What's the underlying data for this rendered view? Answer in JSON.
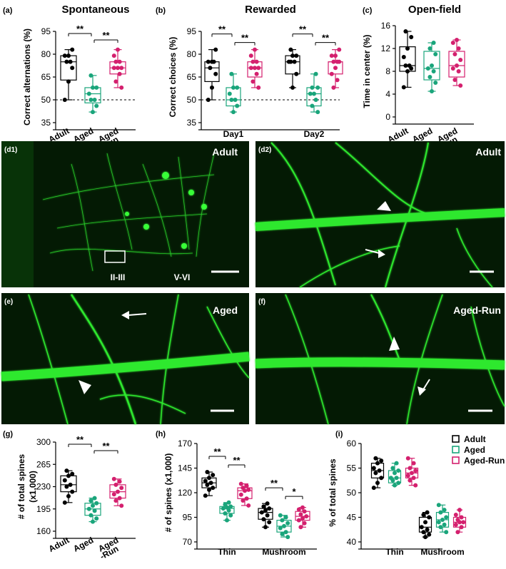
{
  "colors": {
    "adult": "#000000",
    "aged": "#1aa57b",
    "aged_run": "#d4206e",
    "fluor": "#2ee82e",
    "bg": "#041a04"
  },
  "chart_data": [
    {
      "panel_label": "(a)",
      "type": "box",
      "title": "Spontaneous",
      "ylabel": "Correct alternations (%)",
      "categories": [
        "Adult",
        "Aged",
        "Aged\n-Run"
      ],
      "category_lines": [
        [
          "Adult"
        ],
        [
          "Aged"
        ],
        [
          "Aged",
          "-Run"
        ]
      ],
      "ylim": [
        35,
        95
      ],
      "yticks": [
        35,
        50,
        65,
        80,
        95
      ],
      "ref_line": 50,
      "series": [
        {
          "group": "Adult",
          "q1": 63,
          "median": 75,
          "q3": 79,
          "min": 50,
          "max": 83,
          "points": [
            50,
            62,
            71,
            75,
            75,
            79,
            79,
            83
          ]
        },
        {
          "group": "Aged",
          "q1": 48,
          "median": 54,
          "q3": 58,
          "min": 42,
          "max": 66,
          "points": [
            42,
            46,
            50,
            50,
            54,
            58,
            58,
            66
          ]
        },
        {
          "group": "Aged-Run",
          "q1": 67,
          "median": 71,
          "q3": 75,
          "min": 58,
          "max": 83,
          "points": [
            58,
            62,
            67,
            71,
            71,
            71,
            75,
            75,
            79,
            83
          ]
        }
      ],
      "significance": [
        {
          "groups": [
            "Adult",
            "Aged"
          ],
          "label": "**"
        },
        {
          "groups": [
            "Aged",
            "Aged-Run"
          ],
          "label": "**"
        }
      ]
    },
    {
      "panel_label": "(b)",
      "type": "box",
      "title": "Rewarded",
      "ylabel": "Correct choices (%)",
      "categories": [
        "Day1",
        "Day2"
      ],
      "ylim": [
        35,
        95
      ],
      "yticks": [
        35,
        50,
        65,
        80,
        95
      ],
      "ref_line": 50,
      "series": [
        {
          "day": "Day1",
          "group": "Adult",
          "q1": 62,
          "median": 71,
          "q3": 75,
          "min": 50,
          "max": 83,
          "points": [
            50,
            58,
            67,
            71,
            75,
            75,
            75,
            83
          ]
        },
        {
          "day": "Day1",
          "group": "Aged",
          "q1": 46,
          "median": 50,
          "q3": 58,
          "min": 42,
          "max": 67,
          "points": [
            42,
            46,
            50,
            50,
            54,
            58,
            58,
            67
          ]
        },
        {
          "day": "Day1",
          "group": "Aged-Run",
          "q1": 65,
          "median": 71,
          "q3": 75,
          "min": 58,
          "max": 83,
          "points": [
            58,
            62,
            67,
            71,
            71,
            71,
            75,
            75,
            79,
            83
          ]
        },
        {
          "day": "Day2",
          "group": "Adult",
          "q1": 67,
          "median": 75,
          "q3": 79,
          "min": 58,
          "max": 83,
          "points": [
            58,
            67,
            75,
            75,
            75,
            79,
            79,
            83
          ]
        },
        {
          "day": "Day2",
          "group": "Aged",
          "q1": 46,
          "median": 54,
          "q3": 58,
          "min": 42,
          "max": 67,
          "points": [
            42,
            46,
            50,
            54,
            54,
            58,
            58,
            67
          ]
        },
        {
          "day": "Day2",
          "group": "Aged-Run",
          "q1": 67,
          "median": 75,
          "q3": 75,
          "min": 58,
          "max": 83,
          "points": [
            58,
            63,
            67,
            71,
            75,
            75,
            75,
            79,
            79,
            83
          ]
        }
      ],
      "significance": [
        {
          "day": "Day1",
          "groups": [
            "Adult",
            "Aged"
          ],
          "label": "**"
        },
        {
          "day": "Day1",
          "groups": [
            "Aged",
            "Aged-Run"
          ],
          "label": "**"
        },
        {
          "day": "Day2",
          "groups": [
            "Adult",
            "Aged"
          ],
          "label": "**"
        },
        {
          "day": "Day2",
          "groups": [
            "Aged",
            "Aged-Run"
          ],
          "label": "**"
        }
      ]
    },
    {
      "panel_label": "(c)",
      "type": "box",
      "title": "Open-field",
      "ylabel": "Time in center (%)",
      "categories": [
        "Adult",
        "Aged",
        "Aged\n-Run"
      ],
      "category_lines": [
        [
          "Adult"
        ],
        [
          "Aged"
        ],
        [
          "Aged",
          "-Run"
        ]
      ],
      "ylim": [
        0,
        16
      ],
      "yticks": [
        0,
        4,
        8,
        12,
        16
      ],
      "series": [
        {
          "group": "Adult",
          "q1": 8,
          "median": 9,
          "q3": 12.3,
          "min": 5.2,
          "max": 15,
          "points": [
            5.2,
            8,
            8.5,
            9,
            9,
            10.5,
            12,
            14,
            15
          ]
        },
        {
          "group": "Aged",
          "q1": 6.5,
          "median": 8.5,
          "q3": 11.5,
          "min": 4.5,
          "max": 13,
          "points": [
            4.5,
            6,
            7,
            8,
            8.5,
            9,
            11,
            12,
            13
          ]
        },
        {
          "group": "Aged-Run",
          "q1": 7,
          "median": 9,
          "q3": 11.5,
          "min": 5.5,
          "max": 13.5,
          "points": [
            5.5,
            6.5,
            8,
            8.5,
            9,
            10,
            11,
            12,
            13,
            13.5
          ]
        }
      ]
    },
    {
      "panel_label": "(g)",
      "type": "box",
      "ylabel": "# of total spines\n(x1,000)",
      "ylabel_lines": [
        "# of total spines",
        "(x1,000)"
      ],
      "categories": [
        "Adult",
        "Aged",
        "Aged\n-Run"
      ],
      "category_lines": [
        [
          "Adult"
        ],
        [
          "Aged"
        ],
        [
          "Aged",
          "-Run"
        ]
      ],
      "ylim": [
        160,
        300
      ],
      "yticks": [
        160,
        195,
        230,
        265,
        300
      ],
      "series": [
        {
          "group": "Adult",
          "q1": 222,
          "median": 233,
          "q3": 247,
          "min": 205,
          "max": 255,
          "points": [
            205,
            215,
            222,
            230,
            233,
            240,
            247,
            250,
            255
          ]
        },
        {
          "group": "Aged",
          "q1": 185,
          "median": 195,
          "q3": 204,
          "min": 175,
          "max": 212,
          "points": [
            175,
            180,
            185,
            192,
            195,
            200,
            204,
            208,
            212
          ]
        },
        {
          "group": "Aged-Run",
          "q1": 212,
          "median": 222,
          "q3": 233,
          "min": 200,
          "max": 242,
          "points": [
            200,
            208,
            212,
            218,
            222,
            228,
            233,
            238,
            242
          ]
        }
      ],
      "significance": [
        {
          "groups": [
            "Adult",
            "Aged"
          ],
          "label": "**"
        },
        {
          "groups": [
            "Aged",
            "Aged-Run"
          ],
          "label": "**"
        }
      ]
    },
    {
      "panel_label": "(h)",
      "type": "box",
      "ylabel": "# of spines (x1,000)",
      "categories": [
        "Thin",
        "Mushroom"
      ],
      "ylim": [
        70,
        170
      ],
      "yticks": [
        70,
        95,
        120,
        145,
        170
      ],
      "series": [
        {
          "class": "Thin",
          "group": "Adult",
          "q1": 125,
          "median": 130,
          "q3": 135,
          "min": 117,
          "max": 141,
          "points": [
            117,
            123,
            125,
            128,
            130,
            132,
            135,
            138,
            141
          ]
        },
        {
          "class": "Thin",
          "group": "Aged",
          "q1": 99,
          "median": 104,
          "q3": 106,
          "min": 92,
          "max": 110,
          "points": [
            92,
            97,
            99,
            102,
            104,
            105,
            106,
            108,
            110
          ]
        },
        {
          "class": "Thin",
          "group": "Aged-Run",
          "q1": 114,
          "median": 122,
          "q3": 125,
          "min": 107,
          "max": 129,
          "points": [
            107,
            112,
            114,
            118,
            122,
            123,
            125,
            127,
            129
          ]
        },
        {
          "class": "Mushroom",
          "group": "Adult",
          "q1": 93,
          "median": 100,
          "q3": 104,
          "min": 85,
          "max": 109,
          "points": [
            85,
            90,
            93,
            97,
            100,
            102,
            104,
            106,
            109
          ]
        },
        {
          "class": "Mushroom",
          "group": "Aged",
          "q1": 80,
          "median": 86,
          "q3": 92,
          "min": 75,
          "max": 97,
          "points": [
            75,
            78,
            80,
            84,
            86,
            89,
            92,
            95,
            97
          ]
        },
        {
          "class": "Mushroom",
          "group": "Aged-Run",
          "q1": 92,
          "median": 96,
          "q3": 101,
          "min": 85,
          "max": 105,
          "points": [
            85,
            89,
            92,
            94,
            96,
            98,
            101,
            103,
            105
          ]
        }
      ],
      "significance": [
        {
          "class": "Thin",
          "groups": [
            "Adult",
            "Aged"
          ],
          "label": "**"
        },
        {
          "class": "Thin",
          "groups": [
            "Aged",
            "Aged-Run"
          ],
          "label": "**"
        },
        {
          "class": "Mushroom",
          "groups": [
            "Adult",
            "Aged"
          ],
          "label": "**"
        },
        {
          "class": "Mushroom",
          "groups": [
            "Aged",
            "Aged-Run"
          ],
          "label": "*"
        }
      ]
    },
    {
      "panel_label": "(i)",
      "type": "box",
      "ylabel": "% of total spines",
      "categories": [
        "Thin",
        "Mushroom"
      ],
      "ylim": [
        40,
        60
      ],
      "yticks": [
        40,
        45,
        50,
        55,
        60
      ],
      "legend": {
        "entries": [
          "Adult",
          "Aged",
          "Aged-Run"
        ],
        "position": "top-right"
      },
      "series": [
        {
          "class": "Thin",
          "group": "Adult",
          "q1": 53,
          "median": 54.5,
          "q3": 56,
          "min": 51,
          "max": 57,
          "points": [
            51,
            52,
            53,
            54,
            54.5,
            55,
            56,
            56.5,
            57
          ]
        },
        {
          "class": "Thin",
          "group": "Aged",
          "q1": 52,
          "median": 53,
          "q3": 54.5,
          "min": 51.5,
          "max": 56,
          "points": [
            51.5,
            52,
            52.5,
            53,
            53,
            54,
            54.5,
            55,
            56
          ]
        },
        {
          "class": "Thin",
          "group": "Aged-Run",
          "q1": 53,
          "median": 54,
          "q3": 55,
          "min": 51.5,
          "max": 57,
          "points": [
            51.5,
            52.5,
            53,
            53.5,
            54,
            54.5,
            55,
            56,
            57
          ]
        },
        {
          "class": "Mushroom",
          "group": "Adult",
          "q1": 42,
          "median": 43,
          "q3": 45,
          "min": 41,
          "max": 46,
          "points": [
            41,
            41.5,
            42,
            42.5,
            43,
            44,
            45,
            45.5,
            46
          ]
        },
        {
          "class": "Mushroom",
          "group": "Aged",
          "q1": 43,
          "median": 44.5,
          "q3": 46,
          "min": 42,
          "max": 47.5,
          "points": [
            42,
            43,
            43.5,
            44,
            44.5,
            45,
            46,
            46.5,
            47.5
          ]
        },
        {
          "class": "Mushroom",
          "group": "Aged-Run",
          "q1": 43,
          "median": 44,
          "q3": 45,
          "min": 42,
          "max": 46.5,
          "points": [
            42,
            43,
            43.5,
            44,
            44,
            44.5,
            45,
            45.5,
            46.5
          ]
        }
      ]
    }
  ],
  "images": [
    {
      "panel_label": "(d1)",
      "label": "Adult",
      "regions": [
        "II-III",
        "V-VI"
      ]
    },
    {
      "panel_label": "(d2)",
      "label": "Adult"
    },
    {
      "panel_label": "(e)",
      "label": "Aged"
    },
    {
      "panel_label": "(f)",
      "label": "Aged-Run"
    }
  ]
}
